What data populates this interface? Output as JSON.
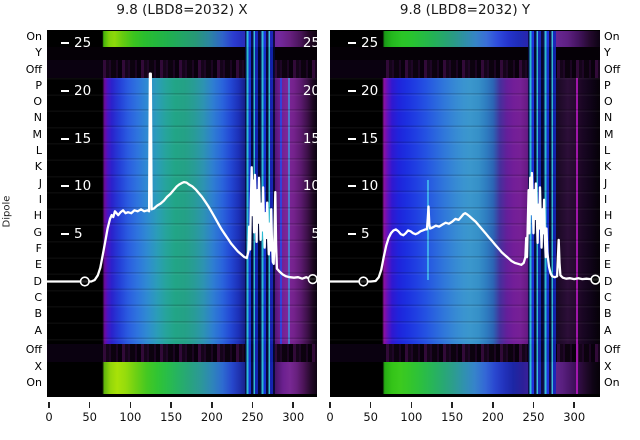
{
  "titles": {
    "left": "9.8 (LBD8=2032) X",
    "right": "9.8 (LBD8=2032) Y"
  },
  "y_axis": {
    "label": "Dipole",
    "row_labels": [
      "On",
      "Y",
      "Off",
      "P",
      "O",
      "N",
      "M",
      "L",
      "K",
      "J",
      "I",
      "H",
      "G",
      "F",
      "E",
      "D",
      "C",
      "B",
      "A",
      "Off",
      "X",
      "On"
    ]
  },
  "x_axis": {
    "tick_labels": [
      "0",
      "50",
      "100",
      "150",
      "200",
      "250",
      "300"
    ]
  },
  "inner_scale": {
    "tick_labels": [
      "25",
      "20",
      "15",
      "10",
      "5"
    ]
  },
  "colors": {
    "curve": "#ffffff",
    "text": "#111111",
    "inner_tick_text": "#ffffff",
    "colormap_low": "#000000",
    "colormap_purple": "#7c2698",
    "colormap_blue": "#2255dd",
    "colormap_cyan": "#2aa4b4",
    "colormap_green": "#2cc42c",
    "colormap_yellow_green": "#a8e208"
  },
  "chart_data": [
    {
      "type": "heatmap+line",
      "title": "9.8 (LBD8=2032) X",
      "x_range": [
        0,
        330
      ],
      "y_scale_ticks": [
        25,
        20,
        15,
        10,
        5
      ],
      "heatmap_note": "nipy-spectral-like waterfall per dipole row: black for x<68; blue/teal band x 68-245; cyan-blue stripe cluster x 243-280; purple x 285-320; bright green bands on On/X rows",
      "line_series": {
        "name": "X profile",
        "points": [
          [
            -5,
            0.05
          ],
          [
            15,
            0.05
          ],
          [
            30,
            0.05
          ],
          [
            44,
            0.05
          ],
          [
            52,
            0.05
          ],
          [
            56,
            0.2
          ],
          [
            60,
            0.7
          ],
          [
            63,
            1.5
          ],
          [
            66,
            2.8
          ],
          [
            69,
            4.2
          ],
          [
            72,
            5.6
          ],
          [
            75,
            6.6
          ],
          [
            77,
            7.0
          ],
          [
            79,
            6.8
          ],
          [
            81,
            7.4
          ],
          [
            83,
            7.2
          ],
          [
            85,
            7.0
          ],
          [
            88,
            7.3
          ],
          [
            91,
            7.5
          ],
          [
            94,
            7.2
          ],
          [
            97,
            7.3
          ],
          [
            101,
            7.2
          ],
          [
            105,
            7.5
          ],
          [
            109,
            7.4
          ],
          [
            113,
            7.6
          ],
          [
            117,
            7.4
          ],
          [
            121,
            7.5
          ],
          [
            123,
            7.4
          ],
          [
            124,
            21.8
          ],
          [
            125,
            21.8
          ],
          [
            126,
            7.6
          ],
          [
            129,
            7.7
          ],
          [
            133,
            8.0
          ],
          [
            137,
            8.2
          ],
          [
            141,
            8.5
          ],
          [
            145,
            8.9
          ],
          [
            149,
            9.2
          ],
          [
            153,
            9.6
          ],
          [
            157,
            10.0
          ],
          [
            160,
            10.2
          ],
          [
            163,
            10.35
          ],
          [
            166,
            10.45
          ],
          [
            169,
            10.4
          ],
          [
            172,
            10.2
          ],
          [
            176,
            10.0
          ],
          [
            180,
            9.7
          ],
          [
            184,
            9.3
          ],
          [
            188,
            8.9
          ],
          [
            192,
            8.4
          ],
          [
            196,
            7.9
          ],
          [
            200,
            7.3
          ],
          [
            204,
            6.7
          ],
          [
            208,
            6.1
          ],
          [
            212,
            5.5
          ],
          [
            216,
            5.0
          ],
          [
            220,
            4.5
          ],
          [
            224,
            4.0
          ],
          [
            228,
            3.6
          ],
          [
            232,
            3.2
          ],
          [
            236,
            2.9
          ],
          [
            240,
            2.6
          ],
          [
            243,
            2.5
          ],
          [
            245,
            3.2
          ],
          [
            246,
            5.8
          ],
          [
            247,
            3.4
          ],
          [
            248,
            8.6
          ],
          [
            249,
            12.0
          ],
          [
            250,
            7.0
          ],
          [
            251,
            10.6
          ],
          [
            252,
            5.2
          ],
          [
            253,
            11.2
          ],
          [
            254,
            8.0
          ],
          [
            255,
            4.2
          ],
          [
            256,
            9.6
          ],
          [
            257,
            6.2
          ],
          [
            258,
            10.9
          ],
          [
            259,
            7.4
          ],
          [
            260,
            4.4
          ],
          [
            261,
            8.2
          ],
          [
            262,
            5.4
          ],
          [
            263,
            9.9
          ],
          [
            264,
            6.0
          ],
          [
            265,
            3.6
          ],
          [
            266,
            7.2
          ],
          [
            267,
            4.6
          ],
          [
            268,
            8.3
          ],
          [
            269,
            5.0
          ],
          [
            270,
            2.9
          ],
          [
            271,
            6.1
          ],
          [
            272,
            3.3
          ],
          [
            273,
            7.6
          ],
          [
            274,
            4.1
          ],
          [
            275,
            2.1
          ],
          [
            276,
            1.9
          ],
          [
            277,
            5.0
          ],
          [
            278,
            9.4
          ],
          [
            279,
            3.9
          ],
          [
            280,
            1.4
          ],
          [
            283,
            1.1
          ],
          [
            287,
            0.8
          ],
          [
            291,
            0.6
          ],
          [
            296,
            0.5
          ],
          [
            301,
            0.45
          ],
          [
            306,
            0.5
          ],
          [
            311,
            0.35
          ],
          [
            316,
            0.5
          ],
          [
            320,
            0.35
          ],
          [
            324,
            0.3
          ],
          [
            329,
            0.35
          ]
        ]
      },
      "markers": [
        [
          44,
          0.05
        ],
        [
          324,
          0.3
        ]
      ]
    },
    {
      "type": "heatmap+line",
      "title": "9.8 (LBD8=2032) Y",
      "x_range": [
        0,
        330
      ],
      "y_scale_ticks": [
        25,
        20,
        15,
        10,
        5
      ],
      "heatmap_note": "nipy-spectral-like waterfall per dipole row: black for x<65; deep blue band x 65-210; purple column x 215-250; blue/cyan stripe cluster x 243-277; dark purple right edge; green bands on On/X rows",
      "line_series": {
        "name": "Y profile",
        "points": [
          [
            0,
            0.05
          ],
          [
            15,
            0.05
          ],
          [
            30,
            0.05
          ],
          [
            41,
            0.05
          ],
          [
            50,
            0.05
          ],
          [
            56,
            0.1
          ],
          [
            60,
            0.5
          ],
          [
            63,
            1.3
          ],
          [
            66,
            2.6
          ],
          [
            69,
            3.8
          ],
          [
            72,
            4.6
          ],
          [
            75,
            5.1
          ],
          [
            78,
            5.4
          ],
          [
            81,
            5.5
          ],
          [
            84,
            5.3
          ],
          [
            87,
            5.0
          ],
          [
            90,
            4.9
          ],
          [
            93,
            5.1
          ],
          [
            96,
            5.4
          ],
          [
            99,
            5.3
          ],
          [
            102,
            5.1
          ],
          [
            105,
            5.0
          ],
          [
            108,
            5.1
          ],
          [
            111,
            5.3
          ],
          [
            114,
            5.4
          ],
          [
            117,
            5.5
          ],
          [
            119,
            5.5
          ],
          [
            120,
            6.5
          ],
          [
            121,
            7.9
          ],
          [
            122,
            6.0
          ],
          [
            123,
            5.6
          ],
          [
            126,
            5.7
          ],
          [
            130,
            5.9
          ],
          [
            134,
            5.8
          ],
          [
            138,
            6.0
          ],
          [
            142,
            6.2
          ],
          [
            146,
            6.1
          ],
          [
            150,
            6.3
          ],
          [
            154,
            6.6
          ],
          [
            158,
            6.5
          ],
          [
            161,
            6.8
          ],
          [
            164,
            7.1
          ],
          [
            166,
            7.2
          ],
          [
            168,
            7.1
          ],
          [
            171,
            6.9
          ],
          [
            175,
            6.6
          ],
          [
            179,
            6.3
          ],
          [
            183,
            5.9
          ],
          [
            187,
            5.5
          ],
          [
            191,
            5.1
          ],
          [
            195,
            4.7
          ],
          [
            199,
            4.3
          ],
          [
            203,
            3.9
          ],
          [
            207,
            3.5
          ],
          [
            211,
            3.1
          ],
          [
            215,
            2.8
          ],
          [
            219,
            2.5
          ],
          [
            223,
            2.2
          ],
          [
            227,
            2.0
          ],
          [
            231,
            1.9
          ],
          [
            235,
            1.8
          ],
          [
            238,
            2.0
          ],
          [
            240,
            2.6
          ],
          [
            241,
            4.6
          ],
          [
            242,
            2.6
          ],
          [
            243,
            6.1
          ],
          [
            244,
            9.6
          ],
          [
            245,
            5.1
          ],
          [
            246,
            10.9
          ],
          [
            247,
            7.1
          ],
          [
            248,
            11.4
          ],
          [
            249,
            8.1
          ],
          [
            250,
            5.1
          ],
          [
            251,
            9.6
          ],
          [
            252,
            6.6
          ],
          [
            253,
            10.3
          ],
          [
            254,
            7.1
          ],
          [
            255,
            4.1
          ],
          [
            256,
            8.1
          ],
          [
            257,
            5.6
          ],
          [
            258,
            9.9
          ],
          [
            259,
            6.1
          ],
          [
            260,
            3.6
          ],
          [
            261,
            7.6
          ],
          [
            262,
            5.1
          ],
          [
            263,
            8.6
          ],
          [
            264,
            4.6
          ],
          [
            265,
            2.6
          ],
          [
            266,
            5.6
          ],
          [
            267,
            3.1
          ],
          [
            269,
            1.6
          ],
          [
            271,
            0.9
          ],
          [
            273,
            0.6
          ],
          [
            276,
            0.5
          ],
          [
            279,
            0.6
          ],
          [
            281,
            4.4
          ],
          [
            282,
            2.0
          ],
          [
            283,
            0.7
          ],
          [
            286,
            0.45
          ],
          [
            290,
            0.35
          ],
          [
            295,
            0.4
          ],
          [
            300,
            0.3
          ],
          [
            305,
            0.4
          ],
          [
            310,
            0.3
          ],
          [
            315,
            0.35
          ],
          [
            320,
            0.3
          ],
          [
            325,
            0.25
          ],
          [
            330,
            0.3
          ]
        ]
      },
      "markers": [
        [
          41,
          0.05
        ],
        [
          326,
          0.25
        ]
      ]
    }
  ]
}
